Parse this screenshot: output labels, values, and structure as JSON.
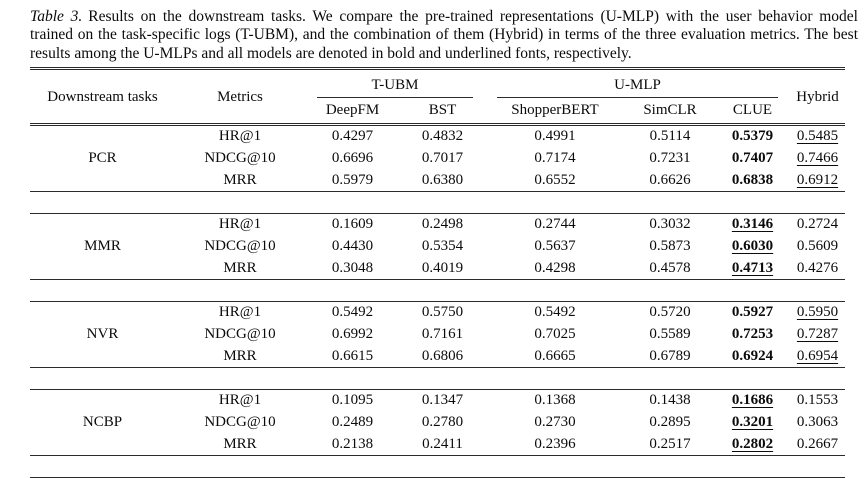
{
  "caption": {
    "label": "Table 3.",
    "text": "Results on the downstream tasks. We compare the pre-trained representations (U-MLP) with the user behavior model trained on the task-specific logs (T-UBM), and the combination of them (Hybrid) in terms of the three evaluation metrics. The best results among the U-MLPs and all models are denoted in bold and underlined fonts, respectively."
  },
  "table": {
    "header": {
      "tasks": "Downstream tasks",
      "metrics": "Metrics",
      "groups": [
        {
          "label": "T-UBM",
          "columns": [
            "DeepFM",
            "BST"
          ]
        },
        {
          "label": "U-MLP",
          "columns": [
            "ShopperBERT",
            "SimCLR",
            "CLUE"
          ]
        }
      ],
      "hybrid": "Hybrid"
    },
    "blocks": [
      {
        "task": "PCR",
        "rows": [
          {
            "metric": "HR@1",
            "cells": [
              {
                "value": "0.4297",
                "style": ""
              },
              {
                "value": "0.4832",
                "style": ""
              },
              {
                "value": "0.4991",
                "style": ""
              },
              {
                "value": "0.5114",
                "style": ""
              },
              {
                "value": "0.5379",
                "style": "bold"
              },
              {
                "value": "0.5485",
                "style": "underline"
              }
            ]
          },
          {
            "metric": "NDCG@10",
            "cells": [
              {
                "value": "0.6696",
                "style": ""
              },
              {
                "value": "0.7017",
                "style": ""
              },
              {
                "value": "0.7174",
                "style": ""
              },
              {
                "value": "0.7231",
                "style": ""
              },
              {
                "value": "0.7407",
                "style": "bold"
              },
              {
                "value": "0.7466",
                "style": "underline"
              }
            ]
          },
          {
            "metric": "MRR",
            "cells": [
              {
                "value": "0.5979",
                "style": ""
              },
              {
                "value": "0.6380",
                "style": ""
              },
              {
                "value": "0.6552",
                "style": ""
              },
              {
                "value": "0.6626",
                "style": ""
              },
              {
                "value": "0.6838",
                "style": "bold"
              },
              {
                "value": "0.6912",
                "style": "underline"
              }
            ]
          }
        ]
      },
      {
        "task": "MMR",
        "rows": [
          {
            "metric": "HR@1",
            "cells": [
              {
                "value": "0.1609",
                "style": ""
              },
              {
                "value": "0.2498",
                "style": ""
              },
              {
                "value": "0.2744",
                "style": ""
              },
              {
                "value": "0.3032",
                "style": ""
              },
              {
                "value": "0.3146",
                "style": "bold-underline"
              },
              {
                "value": "0.2724",
                "style": ""
              }
            ]
          },
          {
            "metric": "NDCG@10",
            "cells": [
              {
                "value": "0.4430",
                "style": ""
              },
              {
                "value": "0.5354",
                "style": ""
              },
              {
                "value": "0.5637",
                "style": ""
              },
              {
                "value": "0.5873",
                "style": ""
              },
              {
                "value": "0.6030",
                "style": "bold-underline"
              },
              {
                "value": "0.5609",
                "style": ""
              }
            ]
          },
          {
            "metric": "MRR",
            "cells": [
              {
                "value": "0.3048",
                "style": ""
              },
              {
                "value": "0.4019",
                "style": ""
              },
              {
                "value": "0.4298",
                "style": ""
              },
              {
                "value": "0.4578",
                "style": ""
              },
              {
                "value": "0.4713",
                "style": "bold-underline"
              },
              {
                "value": "0.4276",
                "style": ""
              }
            ]
          }
        ]
      },
      {
        "task": "NVR",
        "rows": [
          {
            "metric": "HR@1",
            "cells": [
              {
                "value": "0.5492",
                "style": ""
              },
              {
                "value": "0.5750",
                "style": ""
              },
              {
                "value": "0.5492",
                "style": ""
              },
              {
                "value": "0.5720",
                "style": ""
              },
              {
                "value": "0.5927",
                "style": "bold"
              },
              {
                "value": "0.5950",
                "style": "underline"
              }
            ]
          },
          {
            "metric": "NDCG@10",
            "cells": [
              {
                "value": "0.6992",
                "style": ""
              },
              {
                "value": "0.7161",
                "style": ""
              },
              {
                "value": "0.7025",
                "style": ""
              },
              {
                "value": "0.5589",
                "style": ""
              },
              {
                "value": "0.7253",
                "style": "bold"
              },
              {
                "value": "0.7287",
                "style": "underline"
              }
            ]
          },
          {
            "metric": "MRR",
            "cells": [
              {
                "value": "0.6615",
                "style": ""
              },
              {
                "value": "0.6806",
                "style": ""
              },
              {
                "value": "0.6665",
                "style": ""
              },
              {
                "value": "0.6789",
                "style": ""
              },
              {
                "value": "0.6924",
                "style": "bold"
              },
              {
                "value": "0.6954",
                "style": "underline"
              }
            ]
          }
        ]
      },
      {
        "task": "NCBP",
        "rows": [
          {
            "metric": "HR@1",
            "cells": [
              {
                "value": "0.1095",
                "style": ""
              },
              {
                "value": "0.1347",
                "style": ""
              },
              {
                "value": "0.1368",
                "style": ""
              },
              {
                "value": "0.1438",
                "style": ""
              },
              {
                "value": "0.1686",
                "style": "bold-underline"
              },
              {
                "value": "0.1553",
                "style": ""
              }
            ]
          },
          {
            "metric": "NDCG@10",
            "cells": [
              {
                "value": "0.2489",
                "style": ""
              },
              {
                "value": "0.2780",
                "style": ""
              },
              {
                "value": "0.2730",
                "style": ""
              },
              {
                "value": "0.2895",
                "style": ""
              },
              {
                "value": "0.3201",
                "style": "bold-underline"
              },
              {
                "value": "0.3063",
                "style": ""
              }
            ]
          },
          {
            "metric": "MRR",
            "cells": [
              {
                "value": "0.2138",
                "style": ""
              },
              {
                "value": "0.2411",
                "style": ""
              },
              {
                "value": "0.2396",
                "style": ""
              },
              {
                "value": "0.2517",
                "style": ""
              },
              {
                "value": "0.2802",
                "style": "bold-underline"
              },
              {
                "value": "0.2667",
                "style": ""
              }
            ]
          }
        ]
      }
    ]
  }
}
